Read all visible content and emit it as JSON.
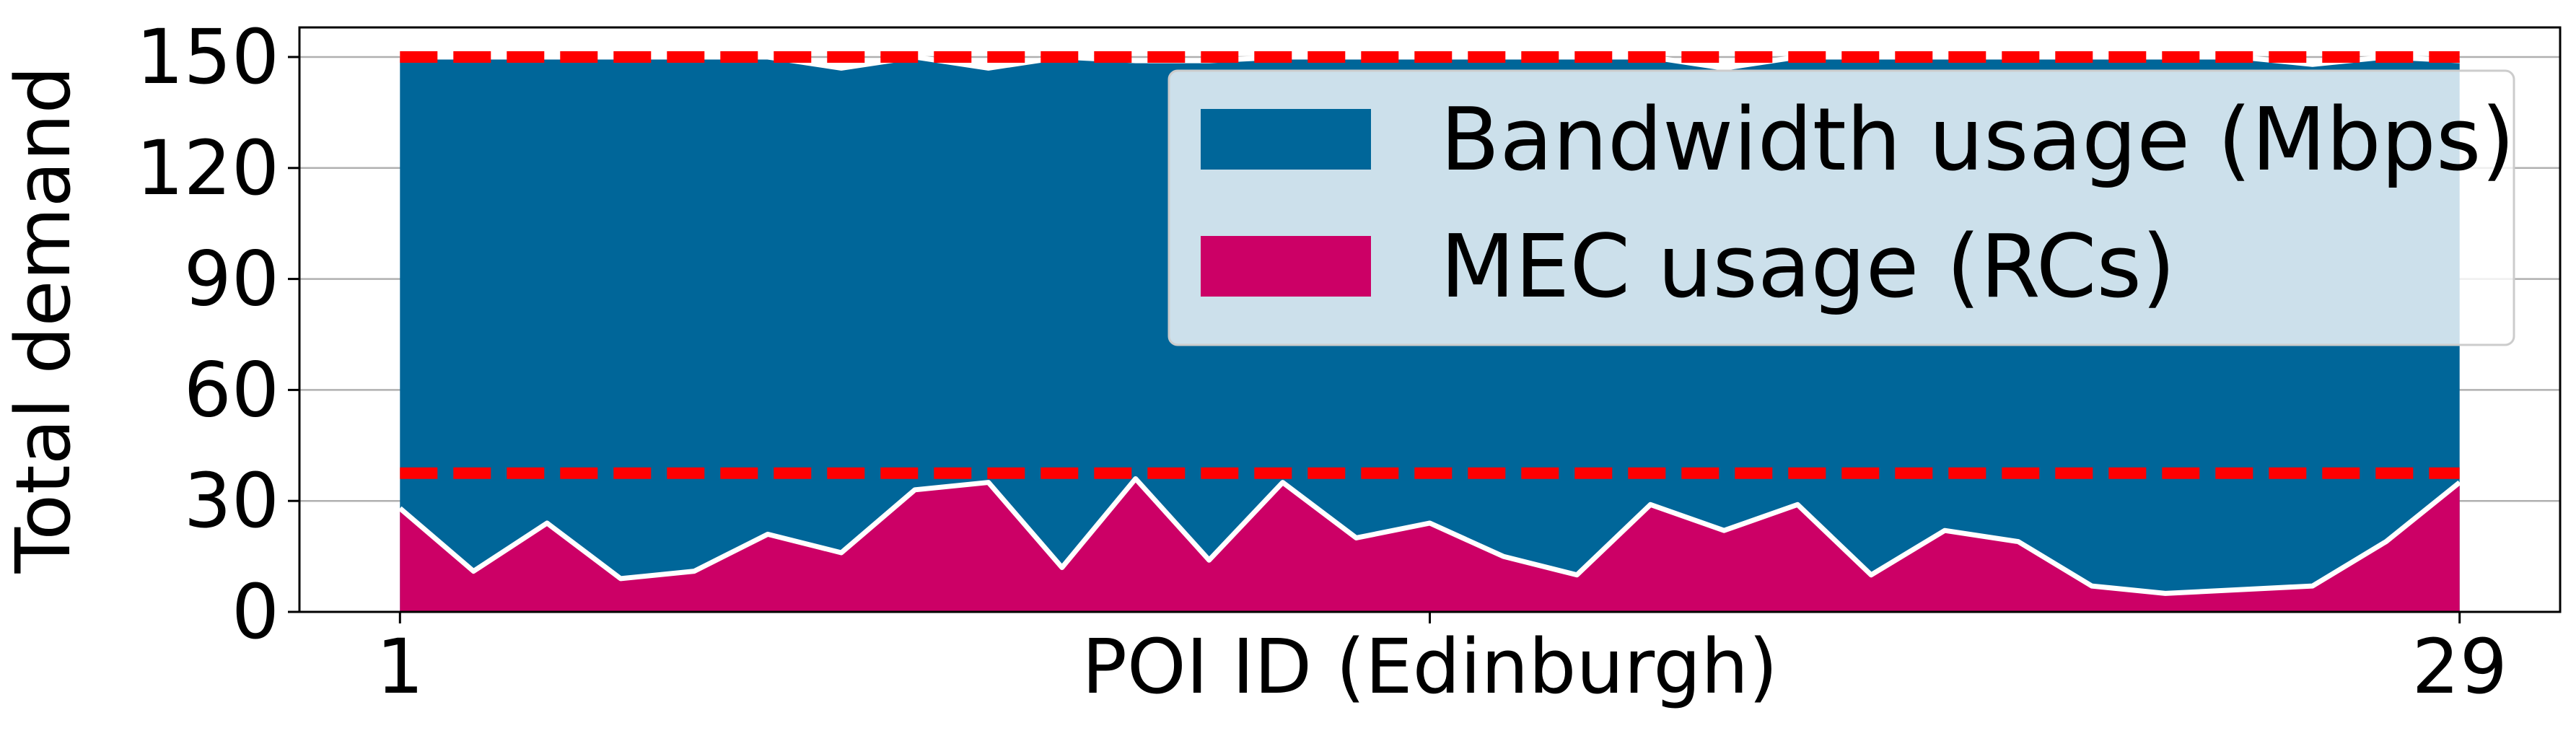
{
  "chart_data": {
    "type": "area",
    "xlabel": "POI ID (Edinburgh)",
    "ylabel": "Total demand",
    "xlim": [
      1,
      29
    ],
    "xticks": [
      1,
      29
    ],
    "ylim": [
      0,
      158
    ],
    "yticks": [
      0,
      30,
      60,
      90,
      120,
      150
    ],
    "grid": "horizontal",
    "legend_position": "top-right",
    "x": [
      1,
      2,
      3,
      4,
      5,
      6,
      7,
      8,
      9,
      10,
      11,
      12,
      13,
      14,
      15,
      16,
      17,
      18,
      19,
      20,
      21,
      22,
      23,
      24,
      25,
      26,
      27,
      28,
      29
    ],
    "series": [
      {
        "name": "Bandwidth usage (Mbps)",
        "color": "#006699",
        "values": [
          150,
          150,
          150,
          150,
          150,
          150,
          147,
          150,
          147,
          150,
          149,
          149,
          150,
          150,
          150,
          150,
          150,
          150,
          147,
          150,
          150,
          150,
          150,
          150,
          150,
          150,
          148,
          150,
          149
        ]
      },
      {
        "name": "MEC usage (RCs)",
        "color": "#cc0066",
        "values": [
          28,
          11,
          24,
          9,
          11,
          21,
          16,
          33,
          35,
          12,
          36,
          14,
          35,
          20,
          24,
          15,
          10,
          29,
          22,
          29,
          10,
          22,
          19,
          7,
          5,
          6,
          7,
          19,
          35
        ]
      }
    ],
    "reference_lines": [
      {
        "value": 150,
        "color": "#ff0000",
        "style": "dashed"
      },
      {
        "value": 37.5,
        "color": "#ff0000",
        "style": "dashed"
      }
    ],
    "outline_color": "#ffffff"
  }
}
